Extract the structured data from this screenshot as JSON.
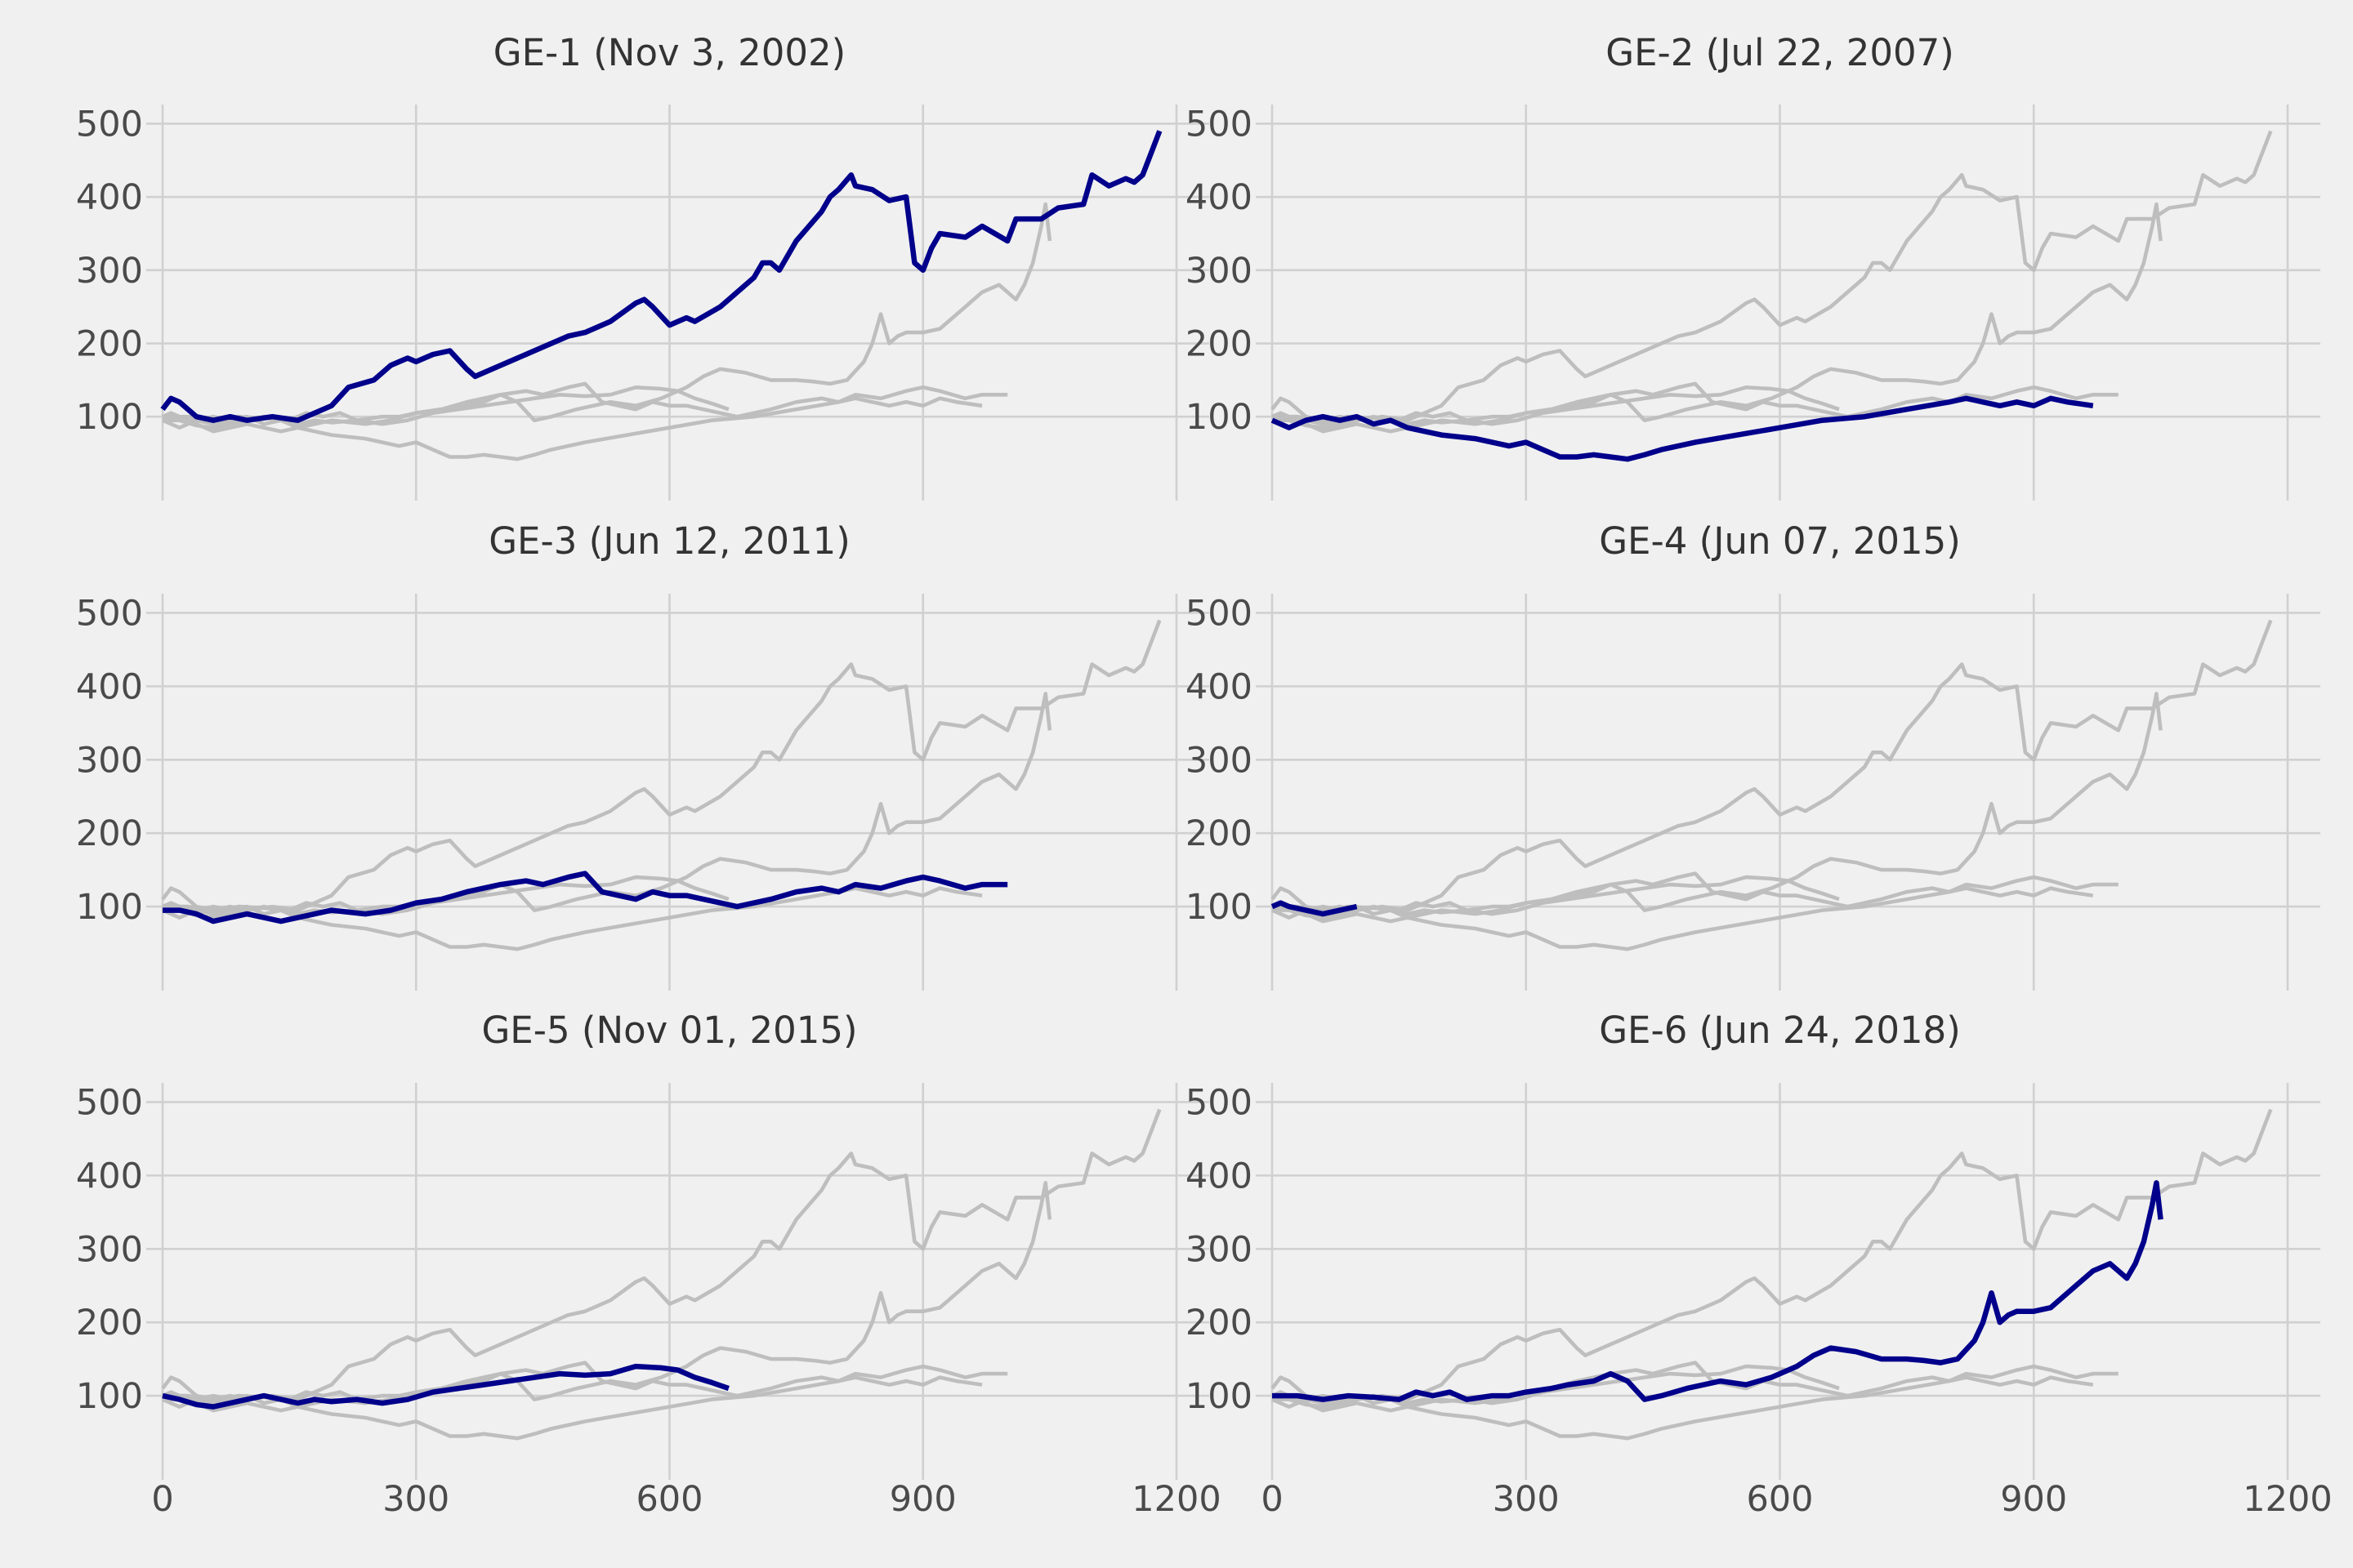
{
  "chart_data": {
    "type": "line",
    "layout": "small-multiples, 3 rows x 2 columns, shared axes",
    "xlim": [
      0,
      1200
    ],
    "ylim": [
      30,
      515
    ],
    "x_ticks": [
      0,
      300,
      600,
      900,
      1200
    ],
    "y_ticks": [
      100,
      200,
      300,
      400,
      500
    ],
    "grid": true,
    "background": "#f0f0f0",
    "colors": {
      "highlight": "#00008b",
      "context": "#bebebe"
    },
    "note": "Each panel draws all series in grey and highlights one series in dark blue. Values are approximate readings of the noisy traces.",
    "panels": [
      {
        "title": "GE-1 (Nov 3, 2002)",
        "highlight": "GE-1"
      },
      {
        "title": "GE-2 (Jul 22, 2007)",
        "highlight": "GE-2"
      },
      {
        "title": "GE-3 (Jun 12, 2011)",
        "highlight": "GE-3"
      },
      {
        "title": "GE-4 (Jun 07, 2015)",
        "highlight": "GE-4"
      },
      {
        "title": "GE-5 (Nov 01, 2015)",
        "highlight": "GE-5"
      },
      {
        "title": "GE-6 (Jun 24, 2018)",
        "highlight": "GE-6"
      }
    ],
    "series": [
      {
        "name": "GE-1",
        "x": [
          0,
          10,
          20,
          30,
          40,
          60,
          80,
          100,
          130,
          160,
          200,
          220,
          250,
          270,
          290,
          300,
          320,
          340,
          360,
          370,
          400,
          430,
          450,
          480,
          500,
          530,
          560,
          570,
          580,
          600,
          620,
          630,
          660,
          700,
          710,
          720,
          730,
          750,
          780,
          790,
          800,
          815,
          820,
          840,
          860,
          880,
          890,
          900,
          910,
          920,
          950,
          970,
          1000,
          1010,
          1040,
          1060,
          1090,
          1100,
          1120,
          1140,
          1150,
          1160,
          1170,
          1180
        ],
        "y": [
          110,
          125,
          120,
          110,
          100,
          95,
          100,
          95,
          100,
          95,
          115,
          140,
          150,
          170,
          180,
          175,
          185,
          190,
          165,
          155,
          170,
          185,
          195,
          210,
          215,
          230,
          255,
          260,
          250,
          225,
          235,
          230,
          250,
          290,
          310,
          310,
          300,
          340,
          380,
          400,
          410,
          430,
          415,
          410,
          395,
          400,
          310,
          300,
          330,
          350,
          345,
          360,
          340,
          370,
          370,
          385,
          390,
          430,
          415,
          425,
          420,
          430,
          460,
          490
        ]
      },
      {
        "name": "GE-2",
        "x": [
          0,
          20,
          40,
          60,
          80,
          100,
          120,
          140,
          160,
          180,
          200,
          240,
          260,
          280,
          300,
          320,
          340,
          360,
          380,
          400,
          420,
          440,
          460,
          480,
          500,
          550,
          600,
          650,
          700,
          750,
          800,
          820,
          840,
          860,
          880,
          900,
          920,
          940,
          970
        ],
        "y": [
          95,
          85,
          95,
          100,
          95,
          100,
          90,
          95,
          85,
          80,
          75,
          70,
          65,
          60,
          65,
          55,
          45,
          45,
          48,
          45,
          42,
          48,
          55,
          60,
          65,
          75,
          85,
          95,
          100,
          110,
          120,
          125,
          120,
          115,
          120,
          115,
          125,
          120,
          115
        ]
      },
      {
        "name": "GE-3",
        "x": [
          0,
          20,
          40,
          60,
          80,
          100,
          120,
          140,
          160,
          200,
          240,
          270,
          300,
          330,
          360,
          380,
          400,
          430,
          450,
          480,
          500,
          520,
          540,
          560,
          580,
          600,
          620,
          640,
          660,
          680,
          700,
          720,
          750,
          780,
          800,
          820,
          850,
          880,
          900,
          920,
          950,
          970,
          1000
        ],
        "y": [
          95,
          95,
          90,
          80,
          85,
          90,
          85,
          80,
          85,
          95,
          90,
          95,
          105,
          110,
          120,
          125,
          130,
          135,
          130,
          140,
          145,
          120,
          115,
          110,
          120,
          115,
          115,
          110,
          105,
          100,
          105,
          110,
          120,
          125,
          120,
          130,
          125,
          135,
          140,
          135,
          125,
          130,
          130
        ]
      },
      {
        "name": "GE-4",
        "x": [
          0,
          10,
          20,
          40,
          60,
          80,
          100
        ],
        "y": [
          100,
          105,
          100,
          95,
          90,
          95,
          100
        ]
      },
      {
        "name": "GE-5",
        "x": [
          0,
          20,
          40,
          60,
          80,
          100,
          120,
          140,
          160,
          180,
          200,
          230,
          260,
          290,
          320,
          350,
          380,
          410,
          440,
          470,
          500,
          530,
          560,
          590,
          610,
          630,
          650,
          670
        ],
        "y": [
          100,
          95,
          88,
          85,
          90,
          95,
          100,
          95,
          90,
          95,
          92,
          95,
          90,
          95,
          105,
          110,
          115,
          120,
          125,
          130,
          128,
          130,
          140,
          138,
          135,
          125,
          118,
          110
        ]
      },
      {
        "name": "GE-6",
        "x": [
          0,
          30,
          60,
          90,
          120,
          150,
          170,
          190,
          210,
          230,
          260,
          280,
          300,
          330,
          350,
          380,
          400,
          420,
          440,
          460,
          490,
          530,
          560,
          590,
          620,
          640,
          660,
          690,
          720,
          750,
          770,
          790,
          810,
          830,
          840,
          850,
          860,
          870,
          880,
          900,
          920,
          930,
          950,
          970,
          990,
          1010,
          1020,
          1030,
          1040,
          1045,
          1050
        ],
        "y": [
          100,
          100,
          95,
          100,
          98,
          95,
          105,
          100,
          105,
          95,
          100,
          100,
          105,
          110,
          115,
          120,
          130,
          120,
          95,
          100,
          110,
          120,
          115,
          125,
          140,
          155,
          165,
          160,
          150,
          150,
          148,
          145,
          150,
          175,
          200,
          240,
          200,
          210,
          215,
          215,
          220,
          230,
          250,
          270,
          280,
          260,
          280,
          310,
          360,
          390,
          340
        ]
      }
    ]
  }
}
